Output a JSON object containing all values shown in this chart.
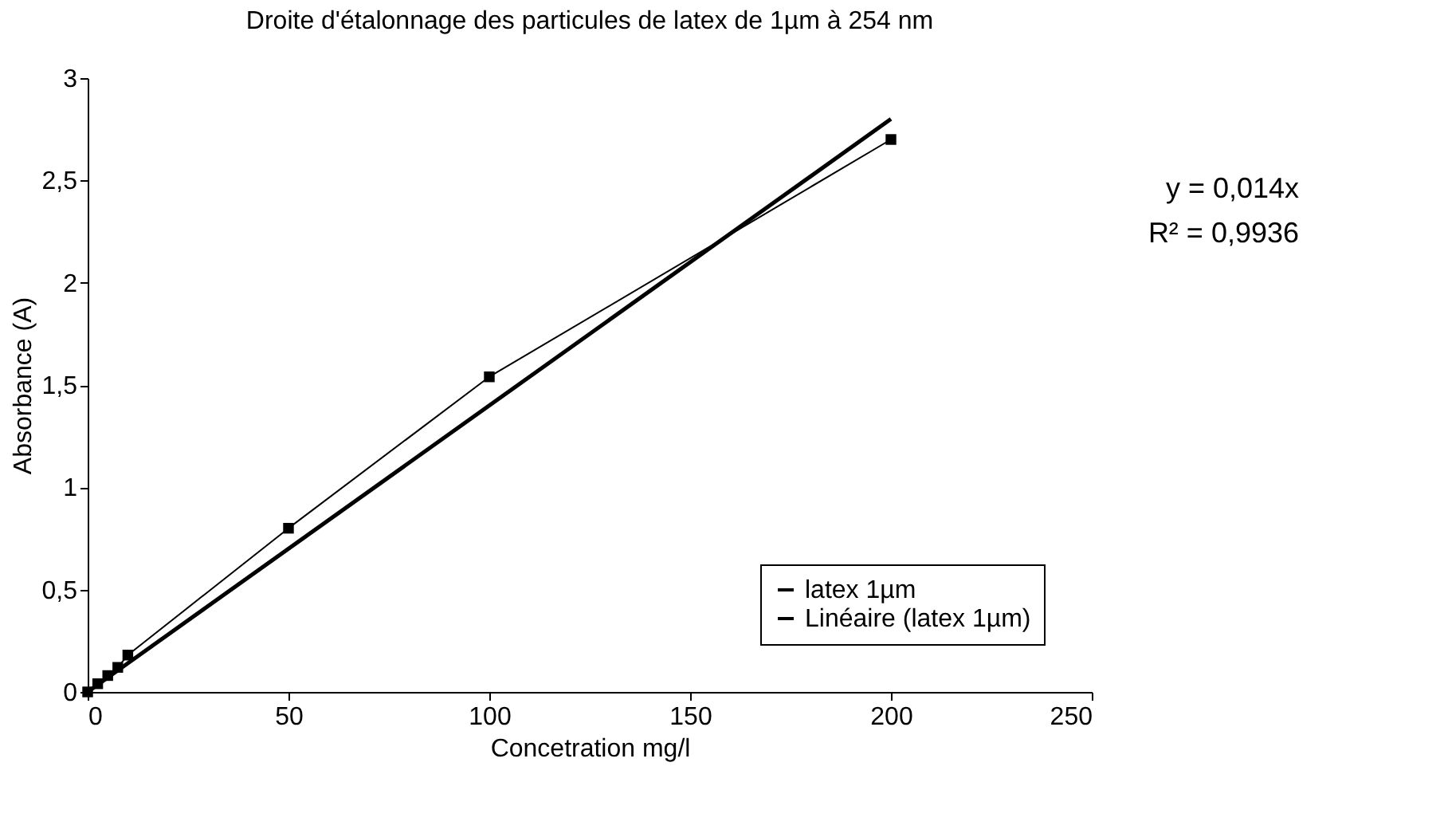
{
  "chart_data": {
    "type": "line",
    "title": "Droite d'étalonnage des particules de latex de 1µm à 254 nm",
    "xlabel": "Concetration mg/l",
    "ylabel": "Absorbance (A)",
    "xlim": [
      0,
      250
    ],
    "xticks": [
      0,
      50,
      100,
      150,
      200,
      250
    ],
    "ylim": [
      0,
      3
    ],
    "yticks": [
      0,
      {
        "value": 0.5,
        "label": "0,5"
      },
      1,
      {
        "value": 1.5,
        "label": "1,5"
      },
      2,
      {
        "value": 2.5,
        "label": "2,5"
      },
      3
    ],
    "grid": false,
    "legend": "bottom right",
    "line_style": "solid",
    "series": [
      {
        "name": "latex 1µm",
        "color": "#000000",
        "marker": "square",
        "x": [
          0,
          2.5,
          5,
          7.5,
          10,
          50,
          100,
          200
        ],
        "values": [
          0,
          0.04,
          0.08,
          0.12,
          0.18,
          0.8,
          1.54,
          2.7
        ]
      },
      {
        "name": "Linéaire (latex 1µm)",
        "color": "#000000",
        "marker": "none",
        "x": [
          0,
          200
        ],
        "values": [
          0,
          2.8
        ]
      }
    ],
    "annotations": [
      "y = 0,014x",
      "R² = 0,9936"
    ]
  }
}
